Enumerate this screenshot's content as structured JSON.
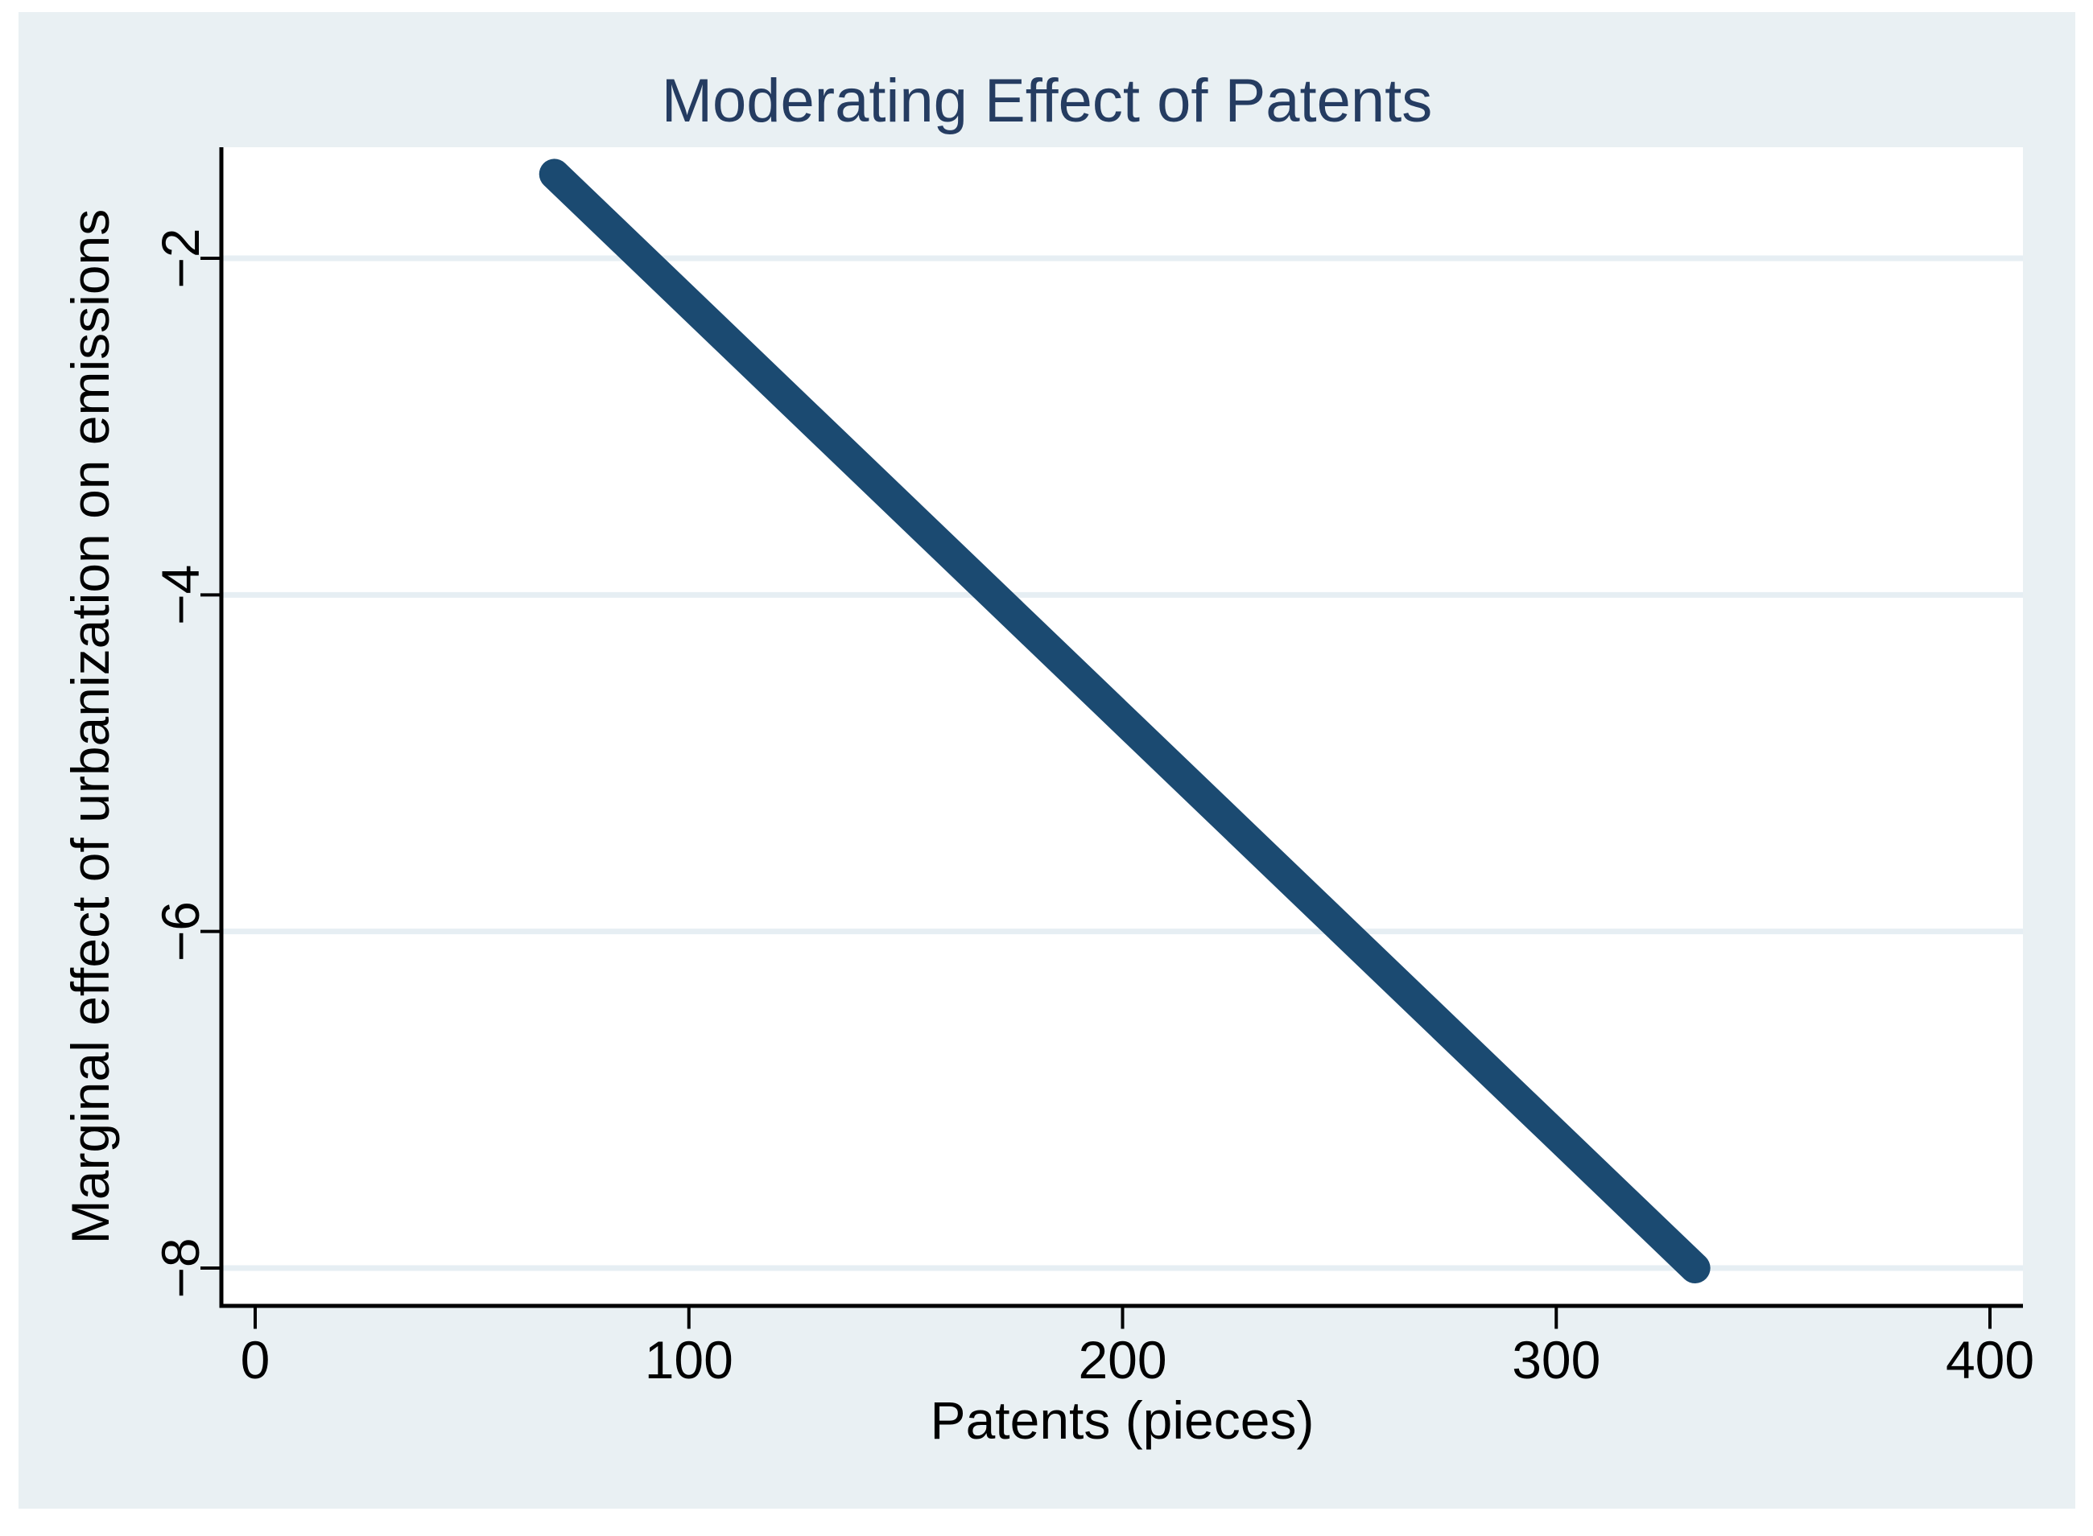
{
  "chart": {
    "title": "Moderating Effect of Patents",
    "xlabel": "Patents (pieces)",
    "ylabel": "Marginal effect of urbanization on emissions"
  },
  "chart_data": {
    "type": "line",
    "title": "Moderating Effect of Patents",
    "xlabel": "Patents (pieces)",
    "ylabel": "Marginal effect of urbanization on emissions",
    "x_ticks": [
      0,
      100,
      200,
      300,
      400
    ],
    "y_ticks": [
      -2,
      -4,
      -6,
      -8
    ],
    "xlim": [
      -8,
      408
    ],
    "ylim": [
      -8.2,
      -1.3
    ],
    "grid": "horizontal",
    "legend_position": "none",
    "series": [
      {
        "name": "marginal effect of urbanization on emissions",
        "x": [
          69,
          332
        ],
        "y": [
          -1.5,
          -8.0
        ],
        "color": "#1b4a71",
        "stroke_width_px": 38,
        "cap": "round"
      }
    ]
  },
  "colors": {
    "page_bg": "#ffffff",
    "canvas_bg": "#e9f0f3",
    "plot_bg": "#ffffff",
    "grid": "#e6eef3",
    "axis": "#000000",
    "tick_label": "#000000",
    "title": "#253c61",
    "line": "#1b4a71"
  }
}
